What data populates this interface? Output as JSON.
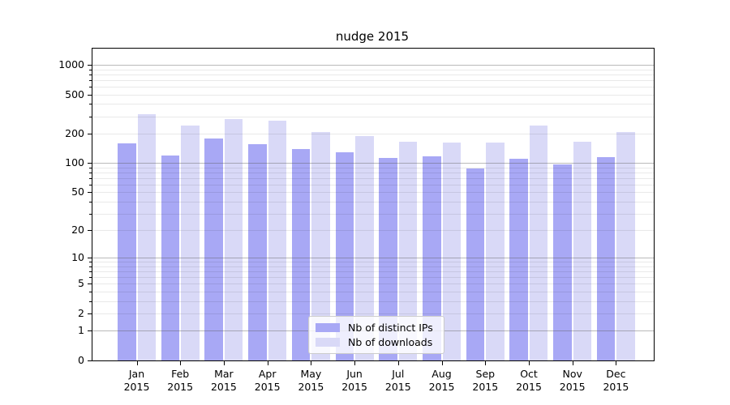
{
  "chart_data": {
    "type": "bar",
    "title": "nudge 2015",
    "xlabel": "",
    "ylabel": "",
    "yscale": "symlog (log10 of 1+value)",
    "ylim": [
      0,
      1460
    ],
    "grid": "both (minor light, decade lines darker, drawn over bars)",
    "categories": [
      "Jan 2015",
      "Feb 2015",
      "Mar 2015",
      "Apr 2015",
      "May 2015",
      "Jun 2015",
      "Jul 2015",
      "Aug 2015",
      "Sep 2015",
      "Oct 2015",
      "Nov 2015",
      "Dec 2015"
    ],
    "y_tick_labels": [
      "0",
      "1",
      "2",
      "5",
      "10",
      "20",
      "50",
      "100",
      "200",
      "500",
      "1000"
    ],
    "y_tick_values": [
      0,
      1,
      2,
      5,
      10,
      20,
      50,
      100,
      200,
      500,
      1000
    ],
    "series": [
      {
        "name": "Nb of distinct IPs",
        "color": "#a8a8f5",
        "values": [
          160,
          120,
          178,
          157,
          140,
          128,
          112,
          116,
          88,
          111,
          97,
          115
        ]
      },
      {
        "name": "Nb of downloads",
        "color": "#d9d9f7",
        "values": [
          315,
          242,
          278,
          270,
          206,
          190,
          166,
          163,
          163,
          243,
          165,
          209
        ]
      }
    ],
    "legend": {
      "position": "lower center, inside plot",
      "entries": [
        "Nb of distinct IPs",
        "Nb of downloads"
      ]
    }
  },
  "colors": {
    "bar_distinct_ips": "#a8a8f5",
    "bar_downloads": "#d9d9f7",
    "major_grid": "#b3b3b3",
    "minor_grid": "#e8e8e8",
    "spine": "#000000",
    "legend_border": "#cccccc",
    "text": "#000000",
    "background": "#ffffff"
  }
}
